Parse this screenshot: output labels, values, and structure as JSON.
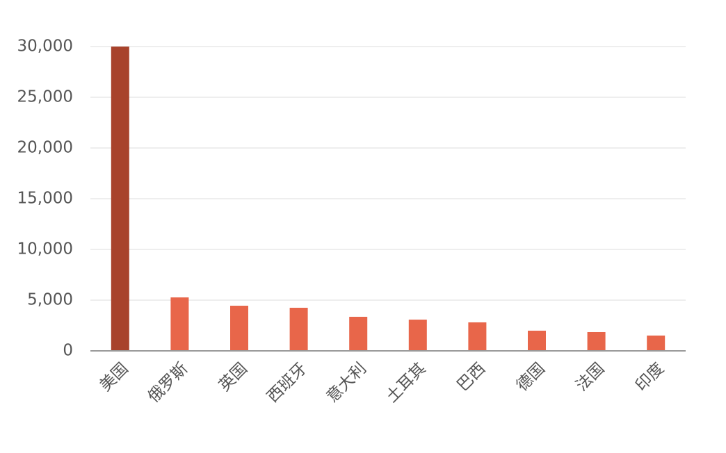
{
  "chart_data": {
    "type": "bar",
    "categories": [
      "美国",
      "俄罗斯",
      "英国",
      "西班牙",
      "意大利",
      "土耳其",
      "巴西",
      "德国",
      "法国",
      "印度"
    ],
    "values": [
      30000,
      5270,
      4450,
      4250,
      3360,
      3080,
      2810,
      1990,
      1850,
      1510
    ],
    "colors": [
      "#a8432c",
      "#e8664a",
      "#e8664a",
      "#e8664a",
      "#e8664a",
      "#e8664a",
      "#e8664a",
      "#e8664a",
      "#e8664a",
      "#e8664a"
    ],
    "ylim": [
      0,
      30000
    ],
    "yticks": [
      0,
      {
        "value": 5000,
        "label": "5,000"
      },
      {
        "value": 10000,
        "label": "10,000"
      },
      {
        "value": 15000,
        "label": "15,000"
      },
      {
        "value": 20000,
        "label": "20,000"
      },
      {
        "value": 25000,
        "label": "25,000"
      },
      {
        "value": 30000,
        "label": "30,000"
      }
    ],
    "grid": true
  }
}
